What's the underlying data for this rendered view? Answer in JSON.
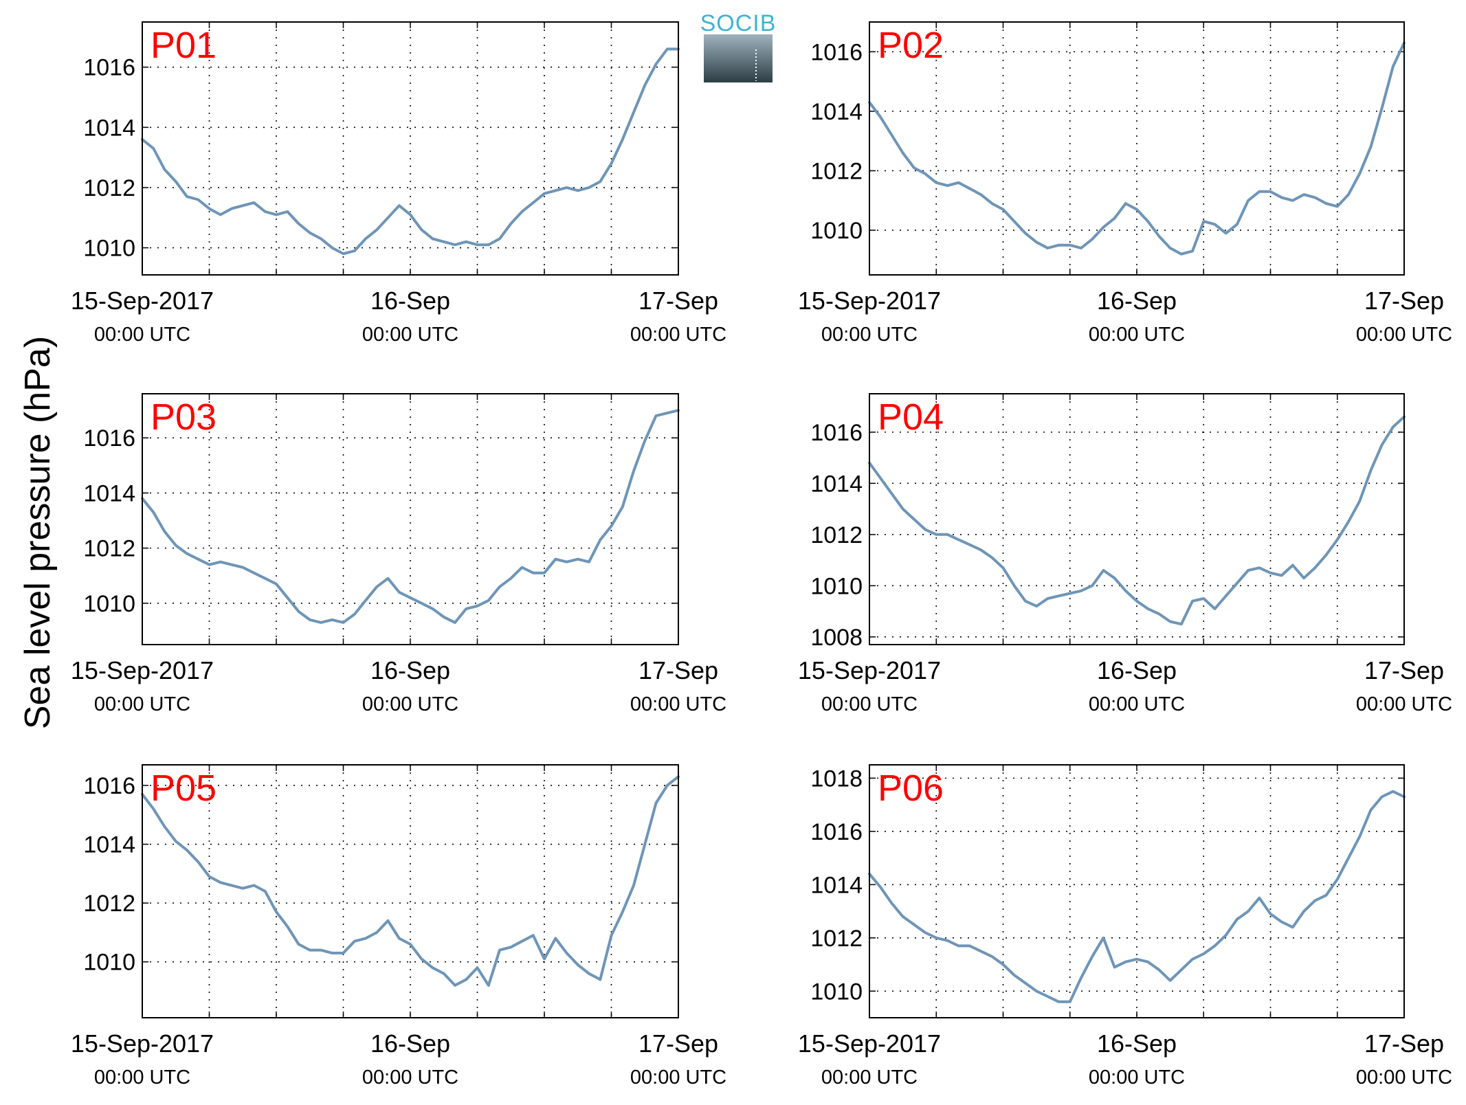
{
  "figure": {
    "ylabel": "Sea level pressure (hPa)",
    "logo_text": "SOCIB",
    "x_tick_labels": [
      {
        "line1": "15-Sep-2017",
        "line2": "00:00 UTC"
      },
      {
        "line1": "16-Sep",
        "line2": "00:00 UTC"
      },
      {
        "line1": "17-Sep",
        "line2": "00:00 UTC"
      }
    ]
  },
  "colors": {
    "line": "#6e95b7",
    "label": "#ff0000",
    "grid": "#000000"
  },
  "chart_data": [
    {
      "type": "line",
      "panel": "P01",
      "xlabel": "",
      "ylabel": "Sea level pressure (hPa)",
      "xlim": [
        0,
        48
      ],
      "ylim": [
        1009.1,
        1017.5
      ],
      "yticks": [
        1010,
        1012,
        1014,
        1016
      ],
      "grid": true,
      "x": [
        0,
        1,
        2,
        3,
        4,
        5,
        6,
        7,
        8,
        9,
        10,
        11,
        12,
        13,
        14,
        15,
        16,
        17,
        18,
        19,
        20,
        21,
        22,
        23,
        24,
        25,
        26,
        27,
        28,
        29,
        30,
        31,
        32,
        33,
        34,
        35,
        36,
        37,
        38,
        39,
        40,
        41,
        42,
        43,
        44,
        45,
        46,
        47,
        48
      ],
      "series": [
        {
          "values": [
            1013.6,
            1013.3,
            1012.6,
            1012.2,
            1011.7,
            1011.6,
            1011.3,
            1011.1,
            1011.3,
            1011.4,
            1011.5,
            1011.2,
            1011.1,
            1011.2,
            1010.8,
            1010.5,
            1010.3,
            1010.0,
            1009.8,
            1009.9,
            1010.3,
            1010.6,
            1011.0,
            1011.4,
            1011.1,
            1010.6,
            1010.3,
            1010.2,
            1010.1,
            1010.2,
            1010.1,
            1010.1,
            1010.3,
            1010.8,
            1011.2,
            1011.5,
            1011.8,
            1011.9,
            1012.0,
            1011.9,
            1012.0,
            1012.2,
            1012.8,
            1013.6,
            1014.5,
            1015.4,
            1016.1,
            1016.6,
            1016.6
          ]
        }
      ]
    },
    {
      "type": "line",
      "panel": "P02",
      "xlabel": "",
      "ylabel": "Sea level pressure (hPa)",
      "xlim": [
        0,
        48
      ],
      "ylim": [
        1008.5,
        1017.0
      ],
      "yticks": [
        1010,
        1012,
        1014,
        1016
      ],
      "grid": true,
      "x": [
        0,
        1,
        2,
        3,
        4,
        5,
        6,
        7,
        8,
        9,
        10,
        11,
        12,
        13,
        14,
        15,
        16,
        17,
        18,
        19,
        20,
        21,
        22,
        23,
        24,
        25,
        26,
        27,
        28,
        29,
        30,
        31,
        32,
        33,
        34,
        35,
        36,
        37,
        38,
        39,
        40,
        41,
        42,
        43,
        44,
        45,
        46,
        47,
        48
      ],
      "series": [
        {
          "values": [
            1014.3,
            1013.8,
            1013.2,
            1012.6,
            1012.1,
            1011.9,
            1011.6,
            1011.5,
            1011.6,
            1011.4,
            1011.2,
            1010.9,
            1010.7,
            1010.3,
            1009.9,
            1009.6,
            1009.4,
            1009.5,
            1009.5,
            1009.4,
            1009.7,
            1010.1,
            1010.4,
            1010.9,
            1010.7,
            1010.3,
            1009.8,
            1009.4,
            1009.2,
            1009.3,
            1010.3,
            1010.2,
            1009.9,
            1010.2,
            1011.0,
            1011.3,
            1011.3,
            1011.1,
            1011.0,
            1011.2,
            1011.1,
            1010.9,
            1010.8,
            1011.2,
            1011.9,
            1012.8,
            1014.1,
            1015.5,
            1016.3
          ]
        }
      ]
    },
    {
      "type": "line",
      "panel": "P03",
      "xlabel": "",
      "ylabel": "Sea level pressure (hPa)",
      "xlim": [
        0,
        48
      ],
      "ylim": [
        1008.5,
        1017.6
      ],
      "yticks": [
        1010,
        1012,
        1014,
        1016
      ],
      "grid": true,
      "x": [
        0,
        1,
        2,
        3,
        4,
        5,
        6,
        7,
        8,
        9,
        10,
        11,
        12,
        13,
        14,
        15,
        16,
        17,
        18,
        19,
        20,
        21,
        22,
        23,
        24,
        25,
        26,
        27,
        28,
        29,
        30,
        31,
        32,
        33,
        34,
        35,
        36,
        37,
        38,
        39,
        40,
        41,
        42,
        43,
        44,
        45,
        46,
        47,
        48
      ],
      "series": [
        {
          "values": [
            1013.8,
            1013.3,
            1012.6,
            1012.1,
            1011.8,
            1011.6,
            1011.4,
            1011.5,
            1011.4,
            1011.3,
            1011.1,
            1010.9,
            1010.7,
            1010.2,
            1009.7,
            1009.4,
            1009.3,
            1009.4,
            1009.3,
            1009.6,
            1010.1,
            1010.6,
            1010.9,
            1010.4,
            1010.2,
            1010.0,
            1009.8,
            1009.5,
            1009.3,
            1009.8,
            1009.9,
            1010.1,
            1010.6,
            1010.9,
            1011.3,
            1011.1,
            1011.1,
            1011.6,
            1011.5,
            1011.6,
            1011.5,
            1012.3,
            1012.8,
            1013.5,
            1014.8,
            1015.9,
            1016.8,
            1016.9,
            1017.0
          ]
        }
      ]
    },
    {
      "type": "line",
      "panel": "P04",
      "xlabel": "",
      "ylabel": "Sea level pressure (hPa)",
      "xlim": [
        0,
        48
      ],
      "ylim": [
        1007.7,
        1017.5
      ],
      "yticks": [
        1008,
        1010,
        1012,
        1014,
        1016
      ],
      "grid": true,
      "x": [
        0,
        1,
        2,
        3,
        4,
        5,
        6,
        7,
        8,
        9,
        10,
        11,
        12,
        13,
        14,
        15,
        16,
        17,
        18,
        19,
        20,
        21,
        22,
        23,
        24,
        25,
        26,
        27,
        28,
        29,
        30,
        31,
        32,
        33,
        34,
        35,
        36,
        37,
        38,
        39,
        40,
        41,
        42,
        43,
        44,
        45,
        46,
        47,
        48
      ],
      "series": [
        {
          "values": [
            1014.8,
            1014.2,
            1013.6,
            1013.0,
            1012.6,
            1012.2,
            1012.0,
            1012.0,
            1011.8,
            1011.6,
            1011.4,
            1011.1,
            1010.7,
            1010.0,
            1009.4,
            1009.2,
            1009.5,
            1009.6,
            1009.7,
            1009.8,
            1010.0,
            1010.6,
            1010.3,
            1009.8,
            1009.4,
            1009.1,
            1008.9,
            1008.6,
            1008.5,
            1009.4,
            1009.5,
            1009.1,
            1009.6,
            1010.1,
            1010.6,
            1010.7,
            1010.5,
            1010.4,
            1010.8,
            1010.3,
            1010.7,
            1011.2,
            1011.8,
            1012.5,
            1013.3,
            1014.5,
            1015.5,
            1016.2,
            1016.6
          ]
        }
      ]
    },
    {
      "type": "line",
      "panel": "P05",
      "xlabel": "",
      "ylabel": "Sea level pressure (hPa)",
      "xlim": [
        0,
        48
      ],
      "ylim": [
        1008.1,
        1016.7
      ],
      "yticks": [
        1010,
        1012,
        1014,
        1016
      ],
      "grid": true,
      "x": [
        0,
        1,
        2,
        3,
        4,
        5,
        6,
        7,
        8,
        9,
        10,
        11,
        12,
        13,
        14,
        15,
        16,
        17,
        18,
        19,
        20,
        21,
        22,
        23,
        24,
        25,
        26,
        27,
        28,
        29,
        30,
        31,
        32,
        33,
        34,
        35,
        36,
        37,
        38,
        39,
        40,
        41,
        42,
        43,
        44,
        45,
        46,
        47,
        48
      ],
      "series": [
        {
          "values": [
            1015.7,
            1015.2,
            1014.6,
            1014.1,
            1013.8,
            1013.4,
            1012.9,
            1012.7,
            1012.6,
            1012.5,
            1012.6,
            1012.4,
            1011.7,
            1011.2,
            1010.6,
            1010.4,
            1010.4,
            1010.3,
            1010.3,
            1010.7,
            1010.8,
            1011.0,
            1011.4,
            1010.8,
            1010.6,
            1010.1,
            1009.8,
            1009.6,
            1009.2,
            1009.4,
            1009.8,
            1009.2,
            1010.4,
            1010.5,
            1010.7,
            1010.9,
            1010.1,
            1010.8,
            1010.3,
            1009.9,
            1009.6,
            1009.4,
            1010.9,
            1011.7,
            1012.6,
            1014.0,
            1015.4,
            1016.0,
            1016.3
          ]
        }
      ]
    },
    {
      "type": "line",
      "panel": "P06",
      "xlabel": "",
      "ylabel": "Sea level pressure (hPa)",
      "xlim": [
        0,
        48
      ],
      "ylim": [
        1009.0,
        1018.5
      ],
      "yticks": [
        1010,
        1012,
        1014,
        1016,
        1018
      ],
      "grid": true,
      "x": [
        0,
        1,
        2,
        3,
        4,
        5,
        6,
        7,
        8,
        9,
        10,
        11,
        12,
        13,
        14,
        15,
        16,
        17,
        18,
        19,
        20,
        21,
        22,
        23,
        24,
        25,
        26,
        27,
        28,
        29,
        30,
        31,
        32,
        33,
        34,
        35,
        36,
        37,
        38,
        39,
        40,
        41,
        42,
        43,
        44,
        45,
        46,
        47,
        48
      ],
      "series": [
        {
          "values": [
            1014.4,
            1013.9,
            1013.3,
            1012.8,
            1012.5,
            1012.2,
            1012.0,
            1011.9,
            1011.7,
            1011.7,
            1011.5,
            1011.3,
            1011.0,
            1010.6,
            1010.3,
            1010.0,
            1009.8,
            1009.6,
            1009.6,
            1010.5,
            1011.3,
            1012.0,
            1010.9,
            1011.1,
            1011.2,
            1011.1,
            1010.8,
            1010.4,
            1010.8,
            1011.2,
            1011.4,
            1011.7,
            1012.1,
            1012.7,
            1013.0,
            1013.5,
            1012.9,
            1012.6,
            1012.4,
            1013.0,
            1013.4,
            1013.6,
            1014.2,
            1015.0,
            1015.8,
            1016.8,
            1017.3,
            1017.5,
            1017.3
          ]
        }
      ]
    }
  ]
}
